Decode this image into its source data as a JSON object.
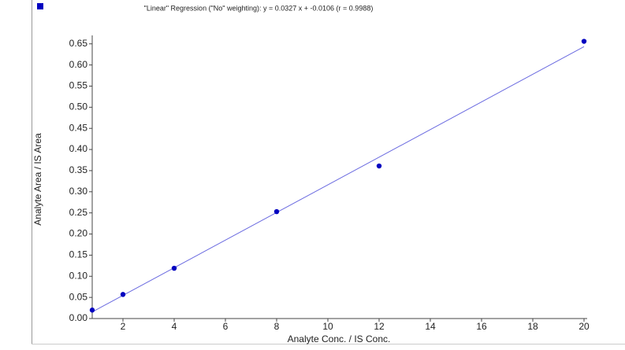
{
  "chart_data": {
    "type": "scatter",
    "title": "\"Linear\" Regression (\"No\" weighting): y = 0.0327 x + -0.0106 (r = 0.9988)",
    "x_label": "Analyte Conc. / IS Conc.",
    "y_label": "Analyte Area / IS Area",
    "x": [
      0.8,
      2,
      4,
      8,
      12,
      20
    ],
    "values": [
      0.02,
      0.057,
      0.119,
      0.253,
      0.361,
      0.656
    ],
    "color": "#0000c0",
    "fit": {
      "slope": 0.0327,
      "intercept": -0.0106,
      "color": "#6a6ae0"
    },
    "xlim": [
      0.8,
      20
    ],
    "xticks": [
      2,
      4,
      6,
      8,
      10,
      12,
      14,
      16,
      18,
      20
    ],
    "ylim": [
      0,
      0.67
    ],
    "yticks": [
      {
        "value": 0,
        "label": "0.00"
      },
      {
        "value": 0.05,
        "label": "0.05"
      },
      {
        "value": 0.1,
        "label": "0.10"
      },
      {
        "value": 0.15,
        "label": "0.15"
      },
      {
        "value": 0.2,
        "label": "0.20"
      },
      {
        "value": 0.25,
        "label": "0.25"
      },
      {
        "value": 0.3,
        "label": "0.30"
      },
      {
        "value": 0.35,
        "label": "0.35"
      },
      {
        "value": 0.4,
        "label": "0.40"
      },
      {
        "value": 0.45,
        "label": "0.45"
      },
      {
        "value": 0.5,
        "label": "0.50"
      },
      {
        "value": 0.55,
        "label": "0.55"
      },
      {
        "value": 0.6,
        "label": "0.60"
      },
      {
        "value": 0.65,
        "label": "0.65"
      }
    ]
  }
}
